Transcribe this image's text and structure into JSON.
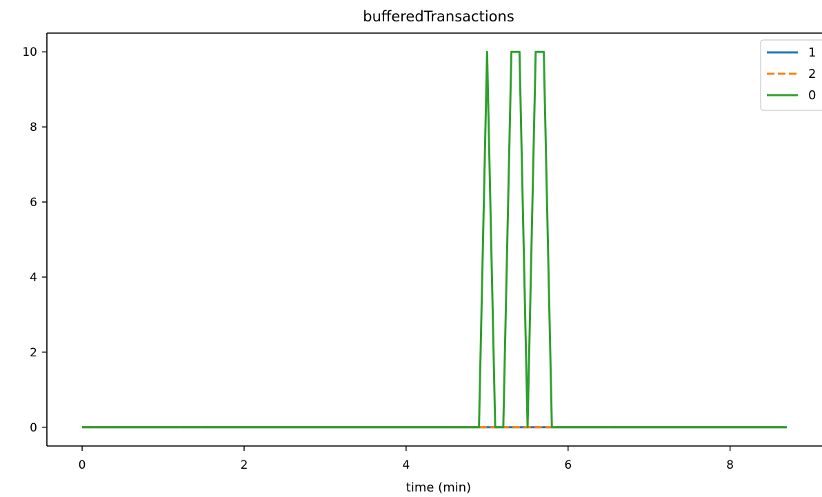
{
  "chart_data": {
    "type": "line",
    "title": "bufferedTransactions",
    "xlabel": "time (min)",
    "ylabel": "",
    "xlim": [
      -0.435,
      9.135
    ],
    "ylim": [
      -0.5,
      10.5
    ],
    "xticks": [
      0,
      2,
      4,
      6,
      8
    ],
    "yticks": [
      0,
      2,
      4,
      6,
      8,
      10
    ],
    "xtick_labels": [
      "0",
      "2",
      "4",
      "6",
      "8"
    ],
    "ytick_labels": [
      "0",
      "2",
      "4",
      "6",
      "8",
      "10"
    ],
    "grid": false,
    "legend_position": "top-right",
    "series": [
      {
        "name": "1",
        "color": "#1f77b4",
        "style": "solid",
        "x": [
          0,
          8.7
        ],
        "y": [
          0,
          0
        ]
      },
      {
        "name": "2",
        "color": "#ff7f0e",
        "style": "dashed",
        "x": [
          0,
          8.7
        ],
        "y": [
          0,
          0
        ]
      },
      {
        "name": "0",
        "color": "#2ca02c",
        "style": "solid",
        "x": [
          0,
          4.9,
          5.0,
          5.1,
          5.2,
          5.3,
          5.4,
          5.5,
          5.6,
          5.7,
          5.8,
          8.7
        ],
        "y": [
          0,
          0,
          10,
          0,
          0,
          10,
          10,
          0,
          10,
          10,
          0,
          0
        ]
      }
    ]
  }
}
